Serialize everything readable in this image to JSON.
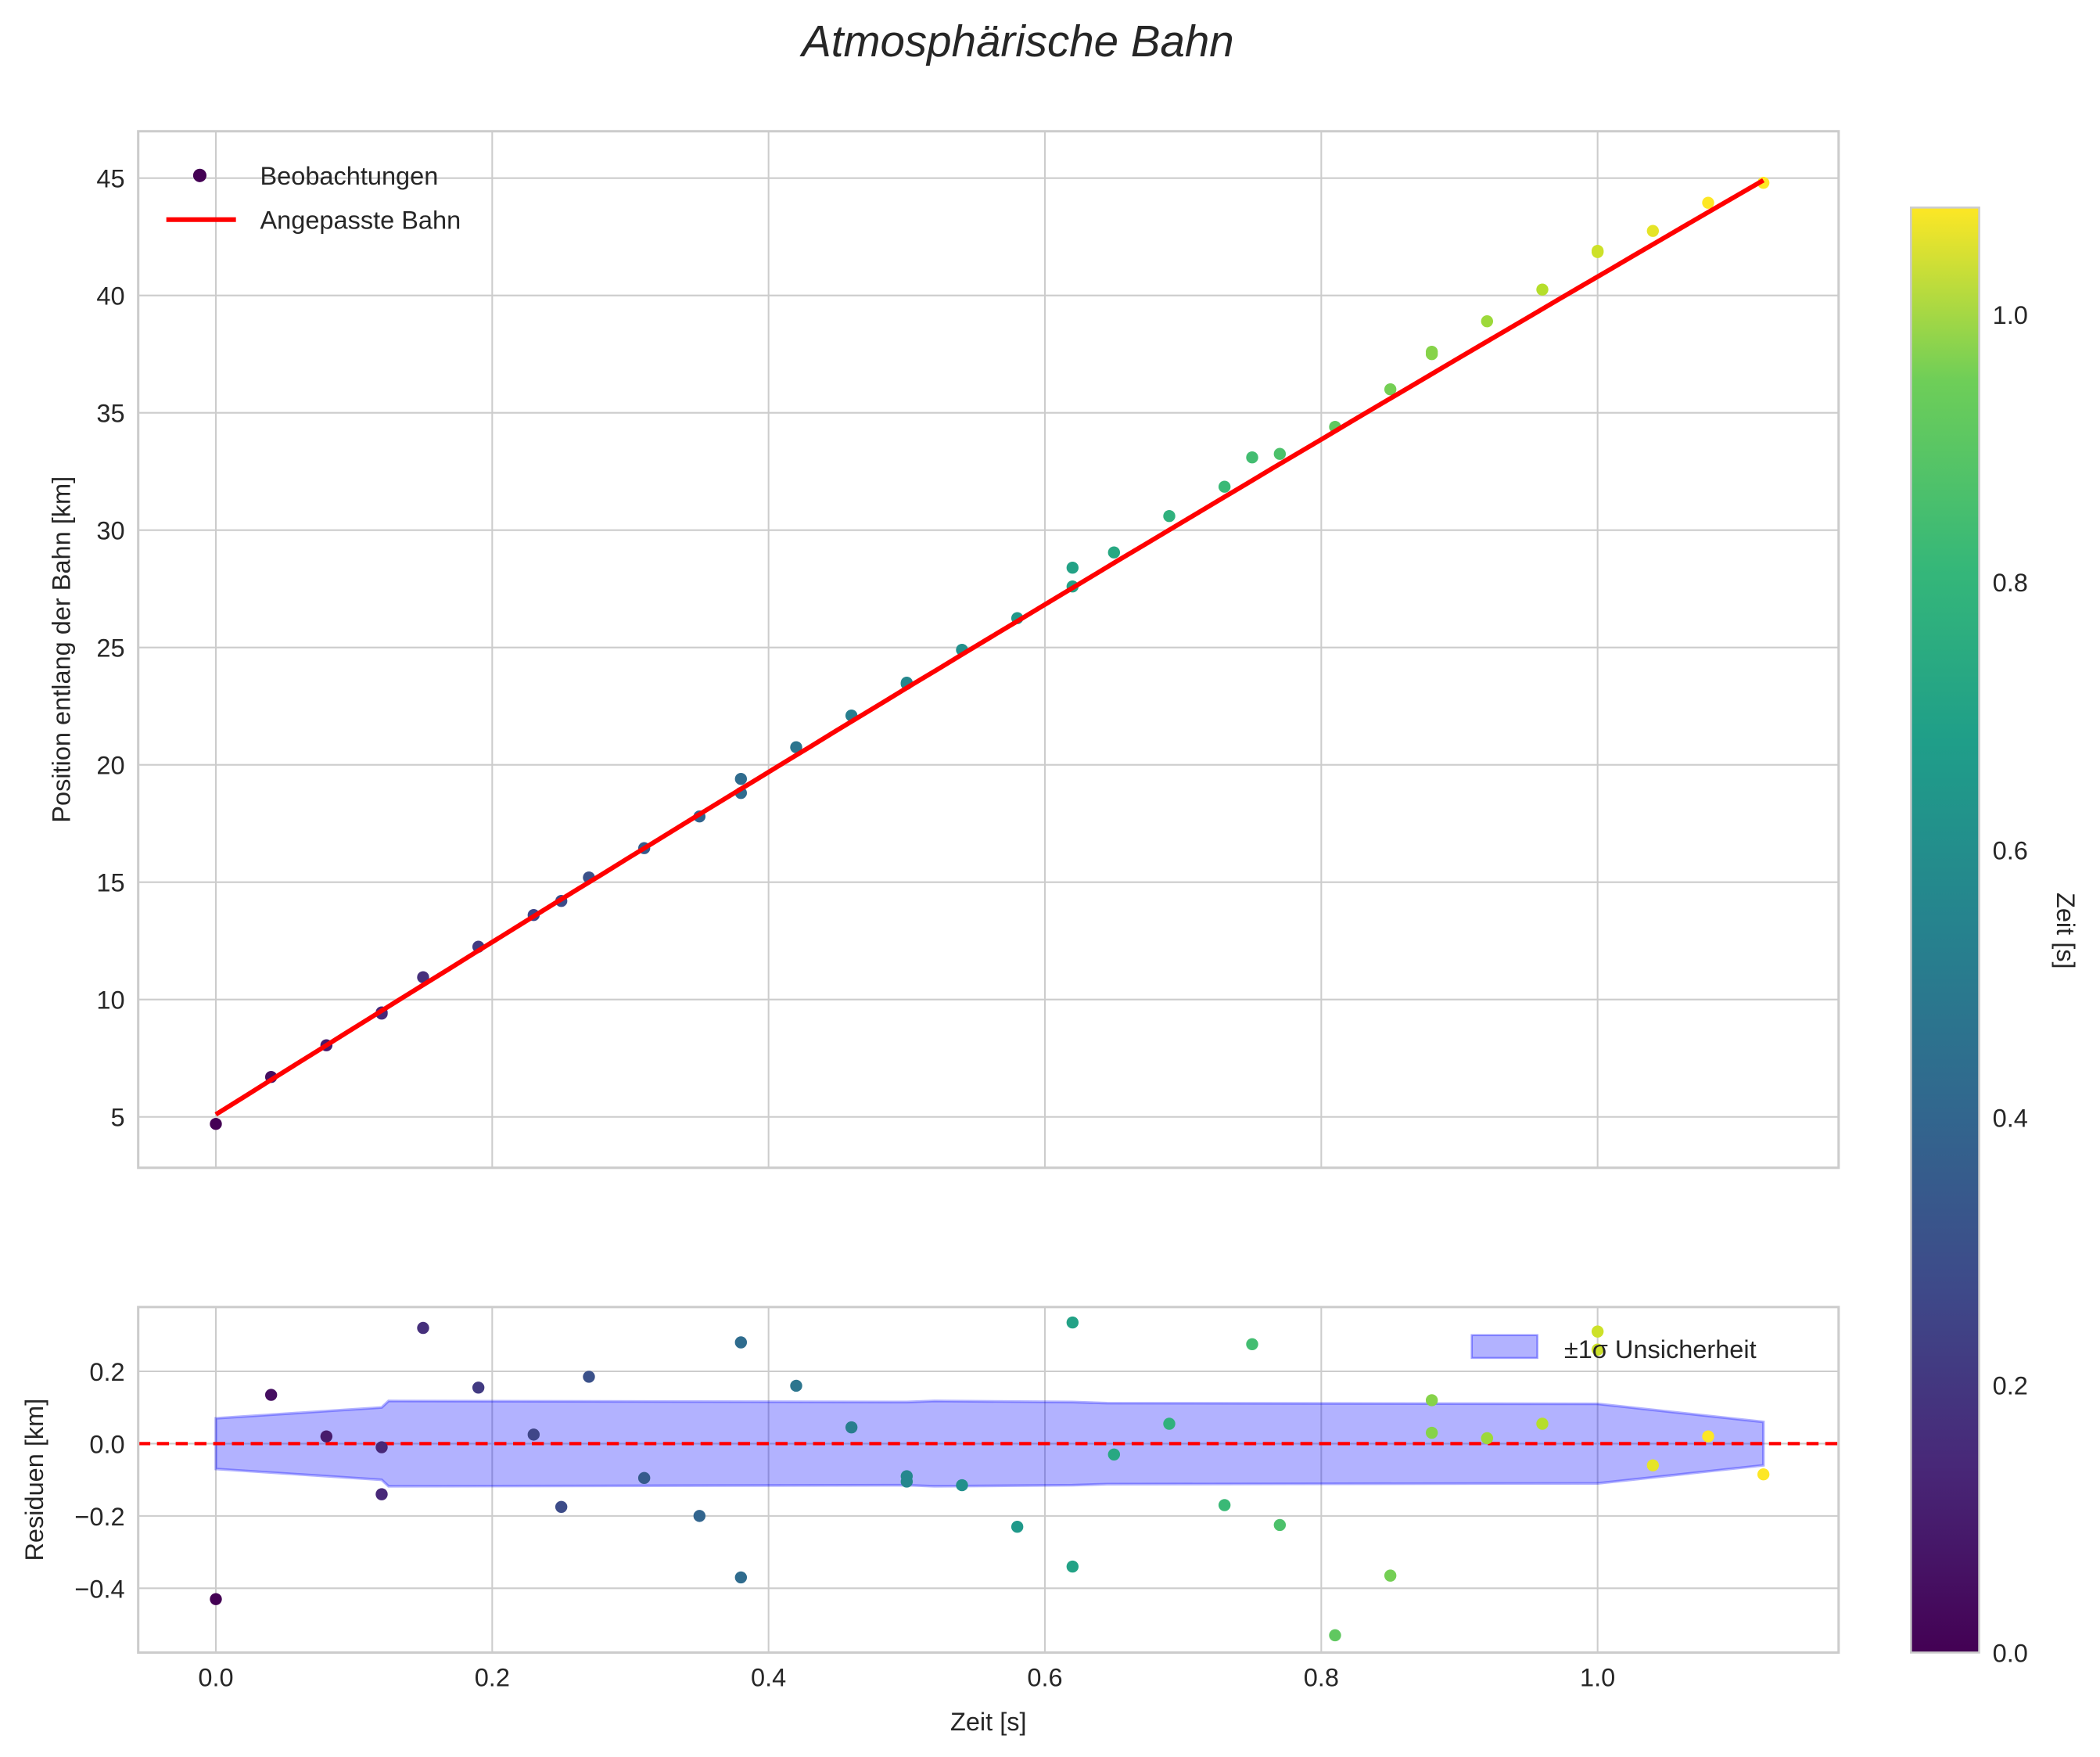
{
  "chart_data": [
    {
      "type": "scatter",
      "title": "Atmosphärische Bahn",
      "xlabel": "",
      "ylabel": "Position entlang der Bahn [km]",
      "xlim": [
        -0.056,
        1.176
      ],
      "ylim": [
        2.7,
        46.8
      ],
      "xticks": [
        0.0,
        0.2,
        0.4,
        0.6,
        0.8,
        1.0
      ],
      "yticks": [
        5,
        10,
        15,
        20,
        25,
        30,
        35,
        40,
        45
      ],
      "grid": true,
      "legend": {
        "placement": "top-left",
        "entries": [
          "Beobachtungen",
          "Angepasste Bahn"
        ]
      },
      "fit_curve": {
        "name": "Angepasste Bahn",
        "color": "#ff0000",
        "coeffs": [
          5.1,
          37.0,
          -1.3
        ],
        "x_range": [
          0,
          1.12
        ]
      },
      "points": {
        "name": "Beobachtungen",
        "x": [
          0.0,
          0.04,
          0.08,
          0.12,
          0.12,
          0.15,
          0.19,
          0.23,
          0.25,
          0.27,
          0.31,
          0.35,
          0.38,
          0.38,
          0.42,
          0.46,
          0.5,
          0.5,
          0.54,
          0.58,
          0.62,
          0.62,
          0.65,
          0.69,
          0.73,
          0.75,
          0.77,
          0.81,
          0.85,
          0.88,
          0.88,
          0.92,
          0.96,
          1.0,
          1.0,
          1.04,
          1.08,
          1.12
        ],
        "y": [
          4.7,
          6.7,
          8.05,
          9.45,
          9.4,
          10.95,
          12.25,
          13.6,
          14.2,
          15.2,
          16.45,
          17.8,
          19.4,
          18.8,
          20.75,
          22.1,
          23.45,
          23.5,
          24.9,
          26.25,
          27.6,
          28.4,
          29.05,
          30.6,
          31.85,
          33.1,
          33.25,
          34.4,
          36.0,
          37.5,
          37.6,
          38.9,
          40.25,
          41.85,
          41.9,
          42.75,
          43.95,
          44.8
        ]
      }
    },
    {
      "type": "scatter",
      "xlabel": "Zeit [s]",
      "ylabel": "Residuen [km]",
      "xlim": [
        -0.056,
        1.176
      ],
      "ylim": [
        -0.58,
        0.38
      ],
      "xticks": [
        0.0,
        0.2,
        0.4,
        0.6,
        0.8,
        1.0
      ],
      "xtick_labels": [
        "0.0",
        "0.2",
        "0.4",
        "0.6",
        "0.8",
        "1.0"
      ],
      "yticks": [
        -0.4,
        -0.2,
        0.0,
        0.2
      ],
      "ytick_labels": [
        "−0.4",
        "−0.2",
        "0.0",
        "0.2"
      ],
      "grid": true,
      "zero_line_color": "#ff0000",
      "legend": {
        "placement": "top-right",
        "entries": [
          "±1σ Unsicherheit"
        ]
      },
      "band": {
        "name": "±1σ Unsicherheit",
        "color": "#0000ff",
        "x": [
          0,
          0.12,
          0.125,
          0.5,
          0.52,
          0.62,
          0.645,
          1.0,
          1.12
        ],
        "sigma": [
          0.07,
          0.1,
          0.118,
          0.115,
          0.118,
          0.115,
          0.112,
          0.11,
          0.06
        ]
      },
      "residuals": {
        "x": [
          0.0,
          0.04,
          0.08,
          0.12,
          0.12,
          0.15,
          0.19,
          0.23,
          0.25,
          0.27,
          0.31,
          0.35,
          0.38,
          0.38,
          0.42,
          0.46,
          0.5,
          0.5,
          0.54,
          0.58,
          0.62,
          0.62,
          0.65,
          0.69,
          0.73,
          0.75,
          0.77,
          0.81,
          0.85,
          0.88,
          0.88,
          0.92,
          0.96,
          1.0,
          1.0,
          1.04,
          1.08,
          1.12
        ],
        "y": [
          -0.43,
          0.135,
          0.02,
          -0.01,
          -0.14,
          0.32,
          0.155,
          0.025,
          -0.175,
          0.185,
          -0.095,
          -0.2,
          0.28,
          -0.37,
          0.16,
          0.045,
          -0.09,
          -0.105,
          -0.115,
          -0.23,
          0.335,
          -0.34,
          -0.03,
          0.055,
          -0.17,
          0.275,
          -0.225,
          -0.53,
          -0.365,
          0.03,
          0.12,
          0.015,
          0.055,
          0.31,
          0.26,
          -0.06,
          0.02,
          -0.085
        ]
      }
    }
  ],
  "colorbar": {
    "label": "Zeit [s]",
    "range": [
      0,
      1.08
    ],
    "ticks": [
      0.0,
      0.2,
      0.4,
      0.6,
      0.8,
      1.0
    ],
    "tick_labels": [
      "0.0",
      "0.2",
      "0.4",
      "0.6",
      "0.8",
      "1.0"
    ],
    "colormap": "viridis"
  }
}
